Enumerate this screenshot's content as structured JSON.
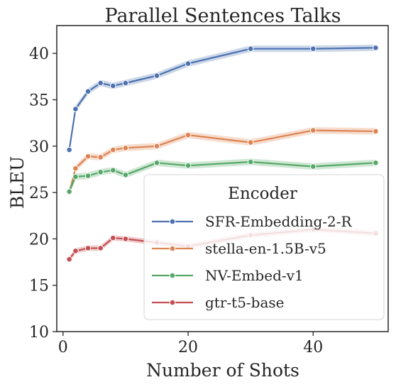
{
  "chart_data": {
    "type": "line",
    "title": "Parallel Sentences Talks",
    "xlabel": "Number of Shots",
    "ylabel": "BLEU",
    "xlim": [
      -1,
      52
    ],
    "ylim": [
      10,
      43
    ],
    "xticks": [
      0,
      20,
      40
    ],
    "yticks": [
      10,
      15,
      20,
      25,
      30,
      35,
      40
    ],
    "grid": false,
    "legend": {
      "title": "Encoder",
      "placement": "lower-right"
    },
    "x": [
      1,
      2,
      4,
      6,
      8,
      10,
      15,
      20,
      30,
      40,
      50
    ],
    "series": [
      {
        "name": "SFR-Embedding-2-R",
        "color": "#4c72b0",
        "values": [
          29.6,
          34.0,
          35.9,
          36.8,
          36.5,
          36.8,
          37.6,
          38.9,
          40.5,
          40.5,
          40.6
        ],
        "band": 0.35
      },
      {
        "name": "stella-en-1.5B-v5",
        "color": "#dd8452",
        "values": [
          25.0,
          27.6,
          28.9,
          28.8,
          29.6,
          29.8,
          30.0,
          31.2,
          30.4,
          31.7,
          31.6
        ],
        "band": 0.35
      },
      {
        "name": "NV-Embed-v1",
        "color": "#55a868",
        "values": [
          25.1,
          26.7,
          26.8,
          27.2,
          27.4,
          26.9,
          28.2,
          27.9,
          28.3,
          27.8,
          28.2
        ],
        "band": 0.35
      },
      {
        "name": "gtr-t5-base",
        "color": "#c44e52",
        "values": [
          17.8,
          18.7,
          19.0,
          19.0,
          20.1,
          20.0,
          19.6,
          19.2,
          20.4,
          21.0,
          20.6
        ],
        "band": 0.3
      }
    ]
  }
}
